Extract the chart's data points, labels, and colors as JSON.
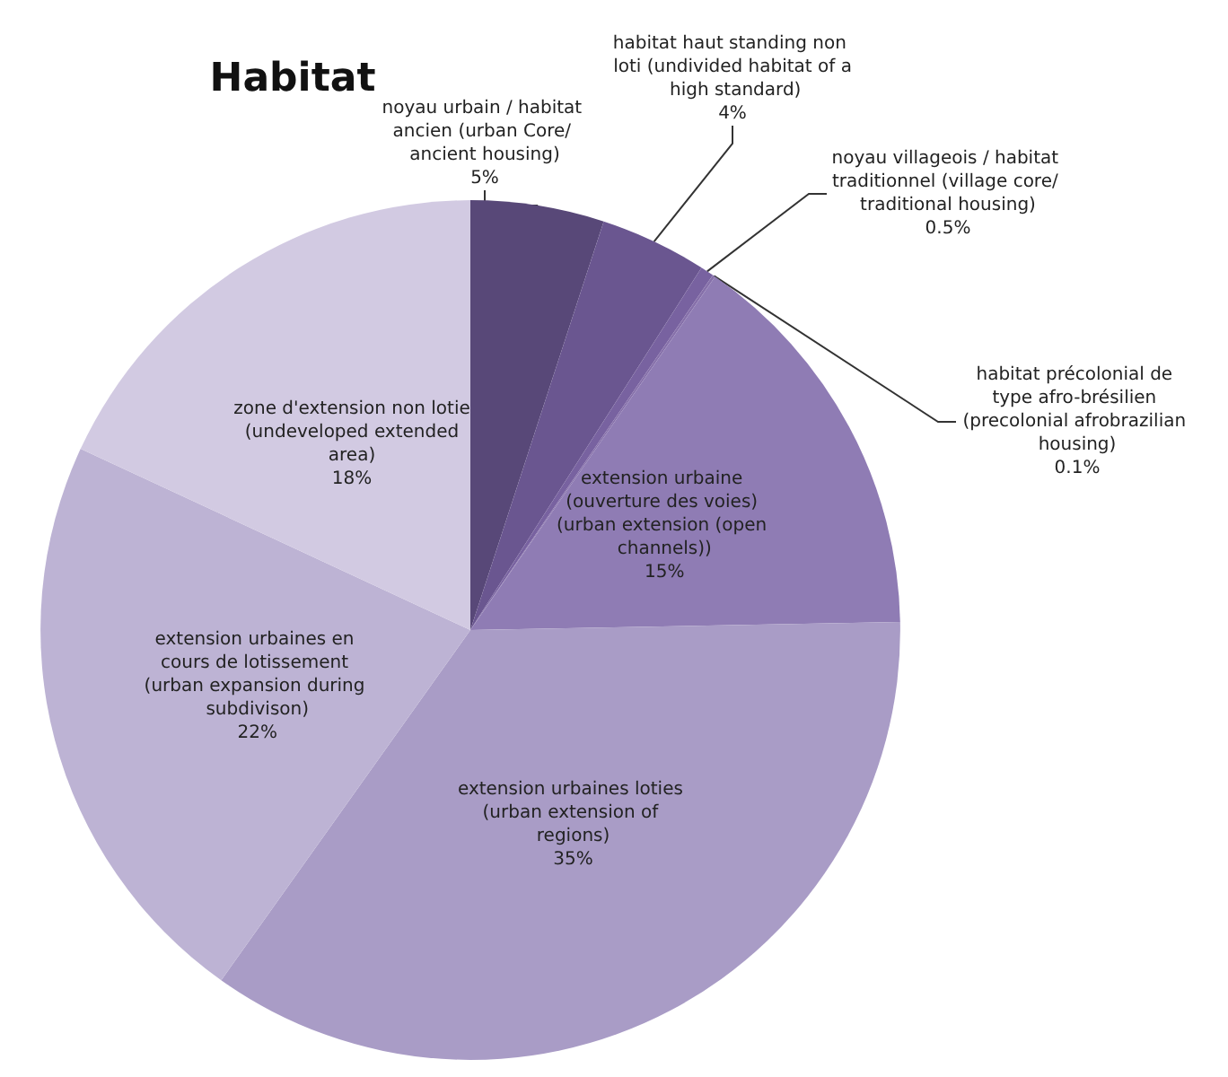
{
  "chart_data": {
    "type": "pie",
    "title": "Habitat",
    "categories": [
      "noyau urbain / habitat ancien (urban Core/ ancient housing)",
      "habitat haut standing non loti (undivided habitat of a high standard)",
      "noyau villageois / habitat traditionnel (village core/ traditional housing)",
      "habitat précolonial de type afro-brésilien (precolonial afrobrazilian housing)",
      "extension urbaine (ouverture des voies) (urban extension (open channels))",
      "extension urbaines loties (urban extension of regions)",
      "extension urbaines en cours de lotissement (urban expansion during subdivison)",
      "zone d'extension non lotie (undeveloped extended area)"
    ],
    "values": [
      5,
      4,
      0.5,
      0.1,
      15,
      35,
      22,
      18
    ],
    "value_labels": [
      "5%",
      "4%",
      "0.5%",
      "0.1%",
      "15%",
      "35%",
      "22%",
      "18%"
    ],
    "colors": [
      "#584878",
      "#6a5690",
      "#7862a0",
      "#8670aa",
      "#8f7cb4",
      "#a99cc6",
      "#bdb3d4",
      "#d2cae2"
    ]
  }
}
